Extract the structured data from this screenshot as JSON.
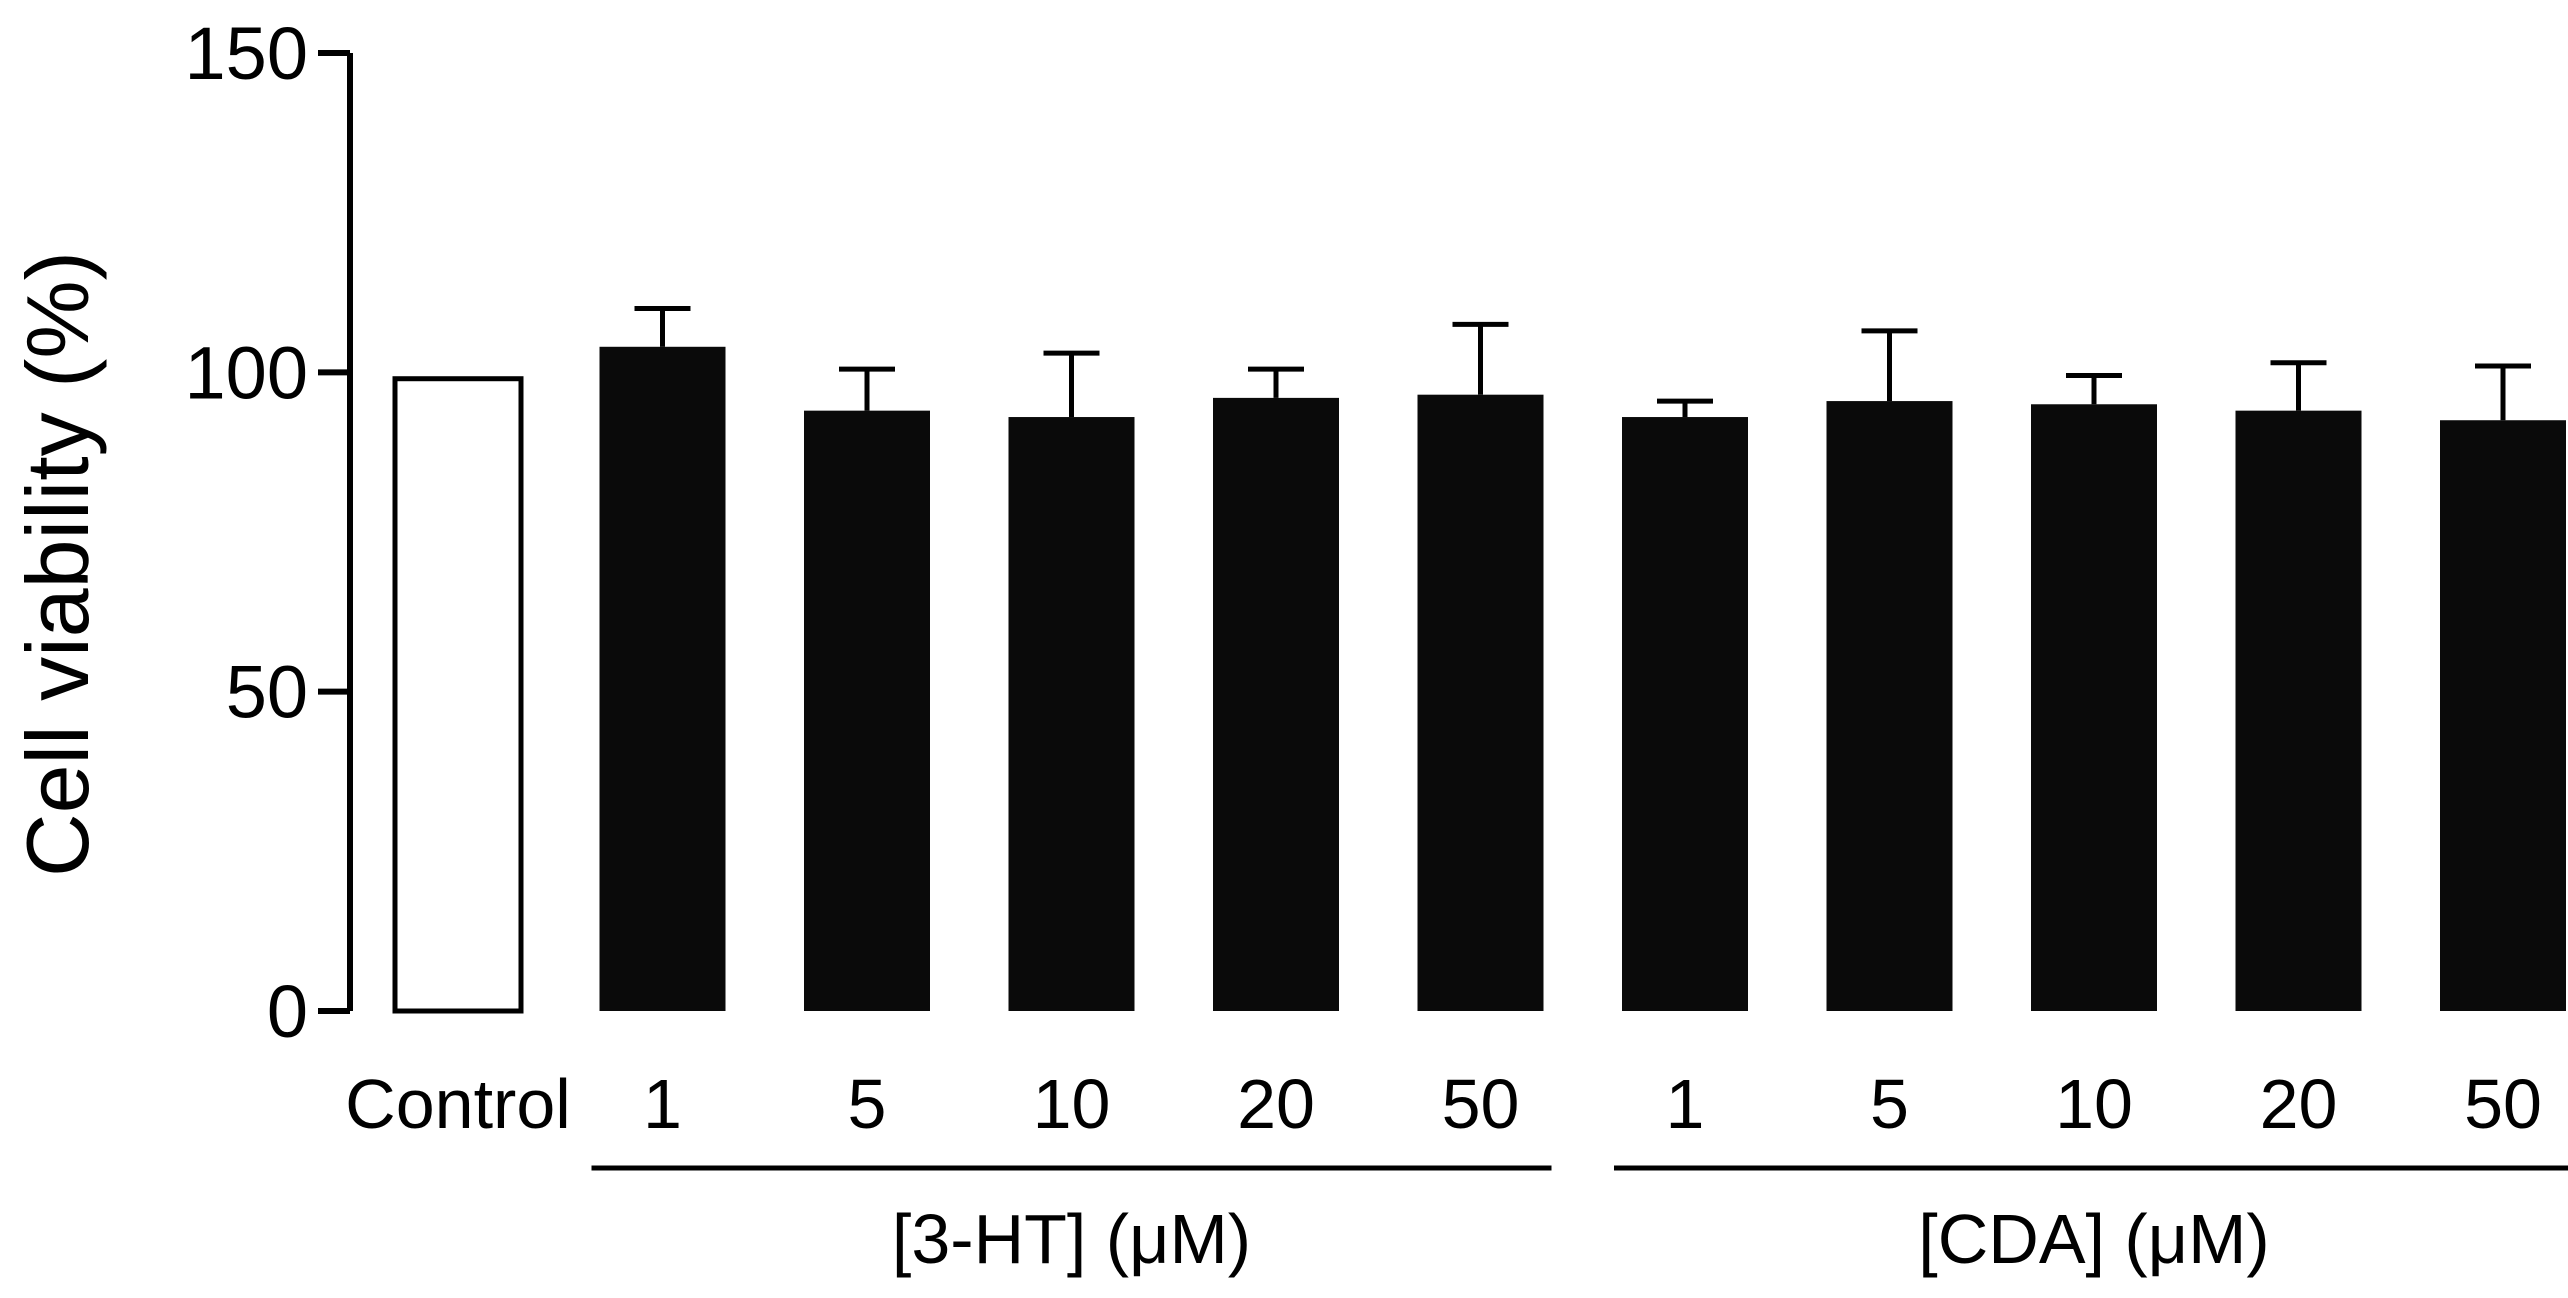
{
  "chart_data": {
    "type": "bar",
    "title": "",
    "ylabel": "Cell viability (%)",
    "xlabel": "",
    "ylim": [
      0,
      150
    ],
    "yticks": [
      "0",
      "50",
      "100",
      "150"
    ],
    "grid": false,
    "legend": "none",
    "categories": [
      "Control",
      "1",
      "5",
      "10",
      "20",
      "50",
      "1",
      "5",
      "10",
      "20",
      "50"
    ],
    "values": [
      99,
      104,
      94,
      93,
      96,
      96.5,
      93,
      95.5,
      95,
      94,
      92.5
    ],
    "errors": [
      0,
      6,
      6.5,
      10,
      4.5,
      11,
      2.5,
      11,
      4.5,
      7.5,
      8.5
    ],
    "fills": [
      "#ffffff",
      "#0a0a0a",
      "#0a0a0a",
      "#0a0a0a",
      "#0a0a0a",
      "#0a0a0a",
      "#0a0a0a",
      "#0a0a0a",
      "#0a0a0a",
      "#0a0a0a",
      "#0a0a0a"
    ],
    "groups": [
      {
        "label": "[3-HT] (μM)",
        "first": 1,
        "last": 5
      },
      {
        "label": "[CDA] (μM)",
        "first": 6,
        "last": 10
      }
    ]
  },
  "colors": {
    "axis": "#000000",
    "bar_filled": "#0a0a0a",
    "bar_open": "#ffffff"
  }
}
